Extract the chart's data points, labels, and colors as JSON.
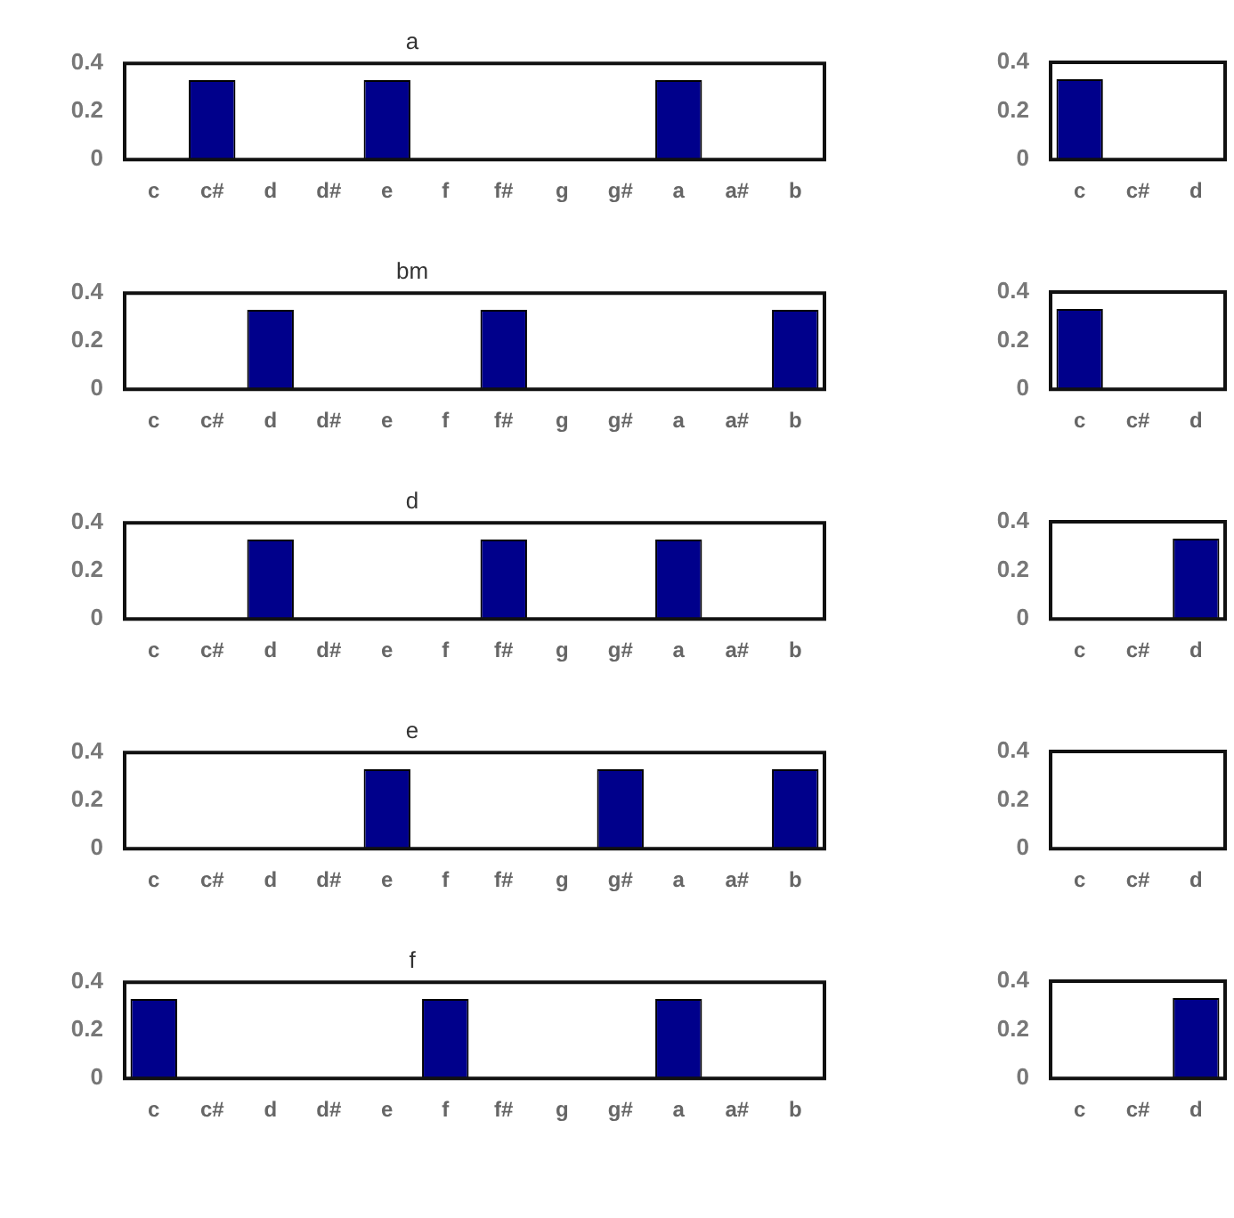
{
  "chart_data": [
    {
      "type": "bar",
      "title": "a",
      "categories": [
        "c",
        "c#",
        "d",
        "d#",
        "e",
        "f",
        "f#",
        "g",
        "g#",
        "a",
        "a#",
        "b"
      ],
      "values": [
        0,
        0.33,
        0,
        0,
        0.33,
        0,
        0,
        0,
        0,
        0.33,
        0,
        0
      ],
      "color": "#00008b",
      "ylim": [
        0,
        0.4
      ],
      "yticks": [
        0,
        0.2,
        0.4
      ]
    },
    {
      "type": "bar",
      "categories": [
        "c",
        "c#",
        "d"
      ],
      "values": [
        0.33,
        0,
        0
      ],
      "color": "#00008b",
      "ylim": [
        0,
        0.4
      ],
      "yticks": [
        0,
        0.2,
        0.4
      ]
    },
    {
      "type": "bar",
      "title": "bm",
      "categories": [
        "c",
        "c#",
        "d",
        "d#",
        "e",
        "f",
        "f#",
        "g",
        "g#",
        "a",
        "a#",
        "b"
      ],
      "values": [
        0,
        0,
        0.33,
        0,
        0,
        0,
        0.33,
        0,
        0,
        0,
        0,
        0.33
      ],
      "color": "#00008b",
      "ylim": [
        0,
        0.4
      ],
      "yticks": [
        0,
        0.2,
        0.4
      ]
    },
    {
      "type": "bar",
      "categories": [
        "c",
        "c#",
        "d"
      ],
      "values": [
        0.33,
        0,
        0
      ],
      "color": "#00008b",
      "ylim": [
        0,
        0.4
      ],
      "yticks": [
        0,
        0.2,
        0.4
      ]
    },
    {
      "type": "bar",
      "title": "d",
      "categories": [
        "c",
        "c#",
        "d",
        "d#",
        "e",
        "f",
        "f#",
        "g",
        "g#",
        "a",
        "a#",
        "b"
      ],
      "values": [
        0,
        0,
        0.33,
        0,
        0,
        0,
        0.33,
        0,
        0,
        0.33,
        0,
        0
      ],
      "color": "#00008b",
      "ylim": [
        0,
        0.4
      ],
      "yticks": [
        0,
        0.2,
        0.4
      ]
    },
    {
      "type": "bar",
      "categories": [
        "c",
        "c#",
        "d"
      ],
      "values": [
        0,
        0,
        0.33
      ],
      "color": "#00008b",
      "ylim": [
        0,
        0.4
      ],
      "yticks": [
        0,
        0.2,
        0.4
      ]
    },
    {
      "type": "bar",
      "title": "e",
      "categories": [
        "c",
        "c#",
        "d",
        "d#",
        "e",
        "f",
        "f#",
        "g",
        "g#",
        "a",
        "a#",
        "b"
      ],
      "values": [
        0,
        0,
        0,
        0,
        0.33,
        0,
        0,
        0,
        0.33,
        0,
        0,
        0.33
      ],
      "color": "#00008b",
      "ylim": [
        0,
        0.4
      ],
      "yticks": [
        0,
        0.2,
        0.4
      ]
    },
    {
      "type": "bar",
      "categories": [
        "c",
        "c#",
        "d"
      ],
      "values": [
        0,
        0,
        0
      ],
      "color": "#00008b",
      "ylim": [
        0,
        0.4
      ],
      "yticks": [
        0,
        0.2,
        0.4
      ]
    },
    {
      "type": "bar",
      "title": "f",
      "categories": [
        "c",
        "c#",
        "d",
        "d#",
        "e",
        "f",
        "f#",
        "g",
        "g#",
        "a",
        "a#",
        "b"
      ],
      "values": [
        0.33,
        0,
        0,
        0,
        0,
        0.33,
        0,
        0,
        0,
        0.33,
        0,
        0
      ],
      "color": "#00008b",
      "ylim": [
        0,
        0.4
      ],
      "yticks": [
        0,
        0.2,
        0.4
      ]
    },
    {
      "type": "bar",
      "categories": [
        "c",
        "c#",
        "d"
      ],
      "values": [
        0,
        0,
        0.33
      ],
      "color": "#00008b",
      "ylim": [
        0,
        0.4
      ],
      "yticks": [
        0,
        0.2,
        0.4
      ]
    }
  ]
}
